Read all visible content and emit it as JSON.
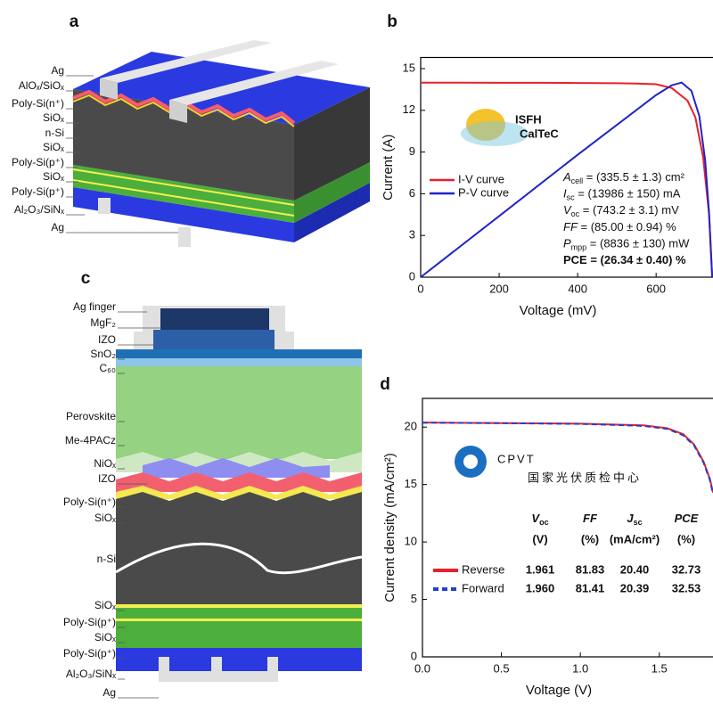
{
  "panels": [
    "a",
    "b",
    "c",
    "d"
  ],
  "diagram_a": {
    "labels": [
      "Ag",
      "AlOₓ/SiOₓ",
      "Poly-Si(n⁺)",
      "SiOₓ",
      "n-Si",
      "SiOₓ",
      "Poly-Si(p⁺)",
      "SiOₓ",
      "Poly-Si(p⁺)",
      "Al₂O₃/SiNₓ",
      "Ag"
    ]
  },
  "diagram_c": {
    "labels": [
      "Ag finger",
      "MgF₂",
      "IZO",
      "SnO₂",
      "C₆₀",
      "Perovskite",
      "Me-4PACz",
      "NiOₓ",
      "IZO",
      "Poly-Si(n⁺)",
      "SiOₓ",
      "n-Si",
      "SiOₓ",
      "Poly-Si(p⁺)",
      "SiOₓ",
      "Poly-Si(p⁺)",
      "Al₂O₃/SiNₓ",
      "Ag"
    ]
  },
  "chart_data": [
    {
      "type": "line",
      "x_label": "Voltage (mV)",
      "y_label": "Current (A)",
      "xlim": [
        0,
        745
      ],
      "ylim": [
        0,
        15.8
      ],
      "xticks": [
        0,
        200,
        400,
        600
      ],
      "yticks": [
        0,
        3,
        6,
        9,
        12,
        15
      ],
      "series": [
        {
          "name": "I-V curve",
          "color": "#e8202a",
          "x": [
            0,
            100,
            200,
            300,
            400,
            500,
            550,
            600,
            640,
            680,
            700,
            720,
            735,
            743
          ],
          "values": [
            13.99,
            13.99,
            13.98,
            13.98,
            13.97,
            13.95,
            13.93,
            13.88,
            13.6,
            12.7,
            11.5,
            8.6,
            4.5,
            0
          ]
        },
        {
          "name": "P-V curve",
          "color": "#2323c8",
          "x": [
            0,
            200,
            400,
            600,
            640,
            665,
            690,
            710,
            725,
            735,
            743
          ],
          "values": [
            0,
            4.4,
            8.8,
            13.1,
            13.8,
            14.0,
            13.4,
            11.6,
            8.4,
            4.6,
            0
          ]
        }
      ],
      "legend": "left",
      "logo": {
        "name": "ISFH",
        "sub": "CalTeC"
      },
      "annotations": [
        {
          "symbol": "A",
          "sub": "cell",
          "text": " = (335.5 ± 1.3) cm²"
        },
        {
          "symbol": "I",
          "sub": "sc",
          "text": " = (13986 ± 150) mA"
        },
        {
          "symbol": "V",
          "sub": "oc",
          "text": " = (743.2 ± 3.1) mV"
        },
        {
          "symbol": "FF",
          "text": " = (85.00 ± 0.94) %"
        },
        {
          "symbol": "P",
          "sub": "mpp",
          "text": " = (8836 ± 130) mW"
        },
        {
          "text": "PCE = (26.34 ± 0.40) %",
          "color": "#e8202a"
        }
      ]
    },
    {
      "type": "line",
      "x_label": "Voltage (V)",
      "y_label": "Current density (mA/cm²)",
      "xlim": [
        0,
        1.84
      ],
      "ylim": [
        0,
        22.5
      ],
      "xticks": [
        {
          "value": 0,
          "label": "0.0"
        },
        {
          "value": 0.5,
          "label": "0.5"
        },
        {
          "value": 1,
          "label": "1.0"
        },
        {
          "value": 1.5,
          "label": "1.5"
        }
      ],
      "yticks": [
        0,
        5,
        10,
        15,
        20
      ],
      "series": [
        {
          "name": "Reverse",
          "color": "#e8202a",
          "x": [
            0,
            0.5,
            1,
            1.4,
            1.55,
            1.65,
            1.72,
            1.78,
            1.82,
            1.84
          ],
          "values": [
            20.4,
            20.35,
            20.3,
            20.15,
            19.9,
            19.4,
            18.5,
            17.0,
            15.5,
            14.3
          ]
        },
        {
          "name": "Forward",
          "color": "#2340d0",
          "dash": true,
          "x": [
            0,
            0.5,
            1,
            1.4,
            1.55,
            1.65,
            1.72,
            1.78,
            1.82,
            1.84
          ],
          "values": [
            20.39,
            20.34,
            20.28,
            20.1,
            19.85,
            19.3,
            18.4,
            16.9,
            15.4,
            14.2
          ]
        }
      ],
      "logo": {
        "name": "CPVT",
        "sub": "国家光伏质检中心"
      },
      "table": {
        "header": [
          {
            "symbol": "V",
            "sub": "oc",
            "unit": "(V)"
          },
          {
            "symbol": "FF",
            "unit": "(%)"
          },
          {
            "symbol": "J",
            "sub": "sc",
            "unit": "(mA/cm²)"
          },
          {
            "symbol": "PCE",
            "unit": "(%)"
          }
        ],
        "rows": [
          [
            "1.961",
            "81.83",
            "20.40",
            "32.73"
          ],
          [
            "1.960",
            "81.41",
            "20.39",
            "32.53"
          ]
        ]
      }
    }
  ]
}
